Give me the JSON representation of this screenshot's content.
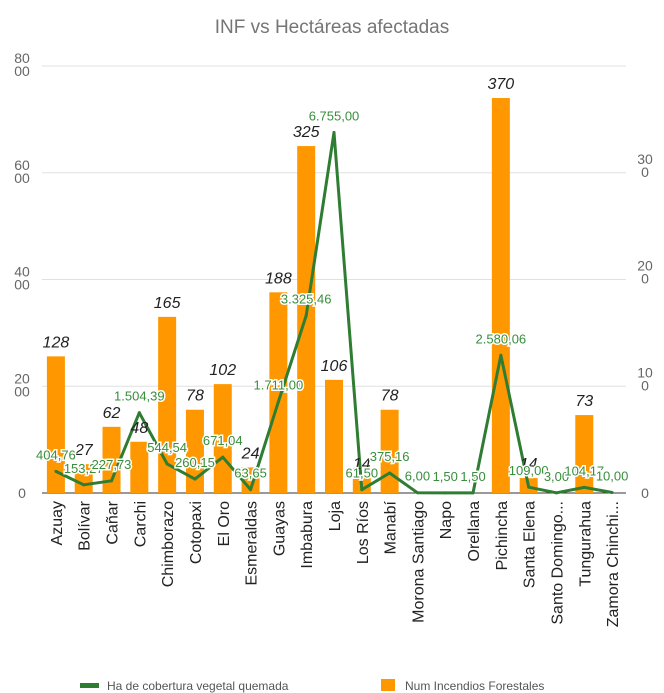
{
  "chart_data": {
    "type": "bar",
    "title": "INF vs Hectáreas afectadas",
    "categories": [
      "Azuay",
      "Bolívar",
      "Cañar",
      "Carchi",
      "Chimborazo",
      "Cotopaxi",
      "El Oro",
      "Esmeraldas",
      "Guayas",
      "Imbabura",
      "Loja",
      "Los Ríos",
      "Manabí",
      "Morona Santiago",
      "Napo",
      "Orellana",
      "Pichincha",
      "Santa Elena",
      "Santo Domingo...",
      "Tungurahua",
      "Zamora Chinchi..."
    ],
    "series": [
      {
        "name": "Num Incendios Forestales",
        "type": "bar",
        "axis": "right",
        "color": "#ff9800",
        "values": [
          128,
          27,
          62,
          48,
          165,
          78,
          102,
          24,
          188,
          325,
          106,
          14,
          78,
          0,
          0,
          0,
          370,
          14,
          0,
          73,
          0
        ],
        "labels": [
          "128",
          "27",
          "62",
          "48",
          "165",
          "78",
          "102",
          "24",
          "188",
          "325",
          "106",
          "14",
          "78",
          "",
          "",
          "",
          "370",
          "14",
          "",
          "73",
          ""
        ]
      },
      {
        "name": "Ha de cobertura vegetal quemada",
        "type": "line",
        "axis": "left",
        "color": "#2e7d32",
        "values": [
          404.76,
          153.27,
          227.73,
          1504.39,
          544.54,
          260.15,
          671.04,
          63.65,
          1711.0,
          3325.46,
          6755.0,
          61.5,
          375.16,
          6.0,
          1.5,
          1.5,
          2580.06,
          109.0,
          3.0,
          104.17,
          10.0
        ],
        "labels": [
          "404,76",
          "153,27",
          "227,73",
          "1.504,39",
          "544,54",
          "260,15",
          "671,04",
          "63,65",
          "1.711,00",
          "3.325,46",
          "6.755,00",
          "61,50",
          "375,16",
          "6,00",
          "1,50",
          "1,50",
          "2.580,06",
          "109,00",
          "3,00",
          "104,17",
          "10,00"
        ]
      }
    ],
    "left_axis": {
      "ylim": [
        0,
        8000
      ],
      "ticks": [
        "0",
        "20\n00",
        "40\n00",
        "60\n00",
        "80\n00"
      ]
    },
    "right_axis": {
      "ylim": [
        0,
        400
      ],
      "ticks": [
        "0",
        "10\n0",
        "20\n0",
        "30\n0"
      ]
    },
    "grid": true,
    "legend_position": "bottom"
  },
  "legend": {
    "line_label": "Ha de cobertura vegetal quemada",
    "bar_label": "Num Incendios Forestales"
  }
}
